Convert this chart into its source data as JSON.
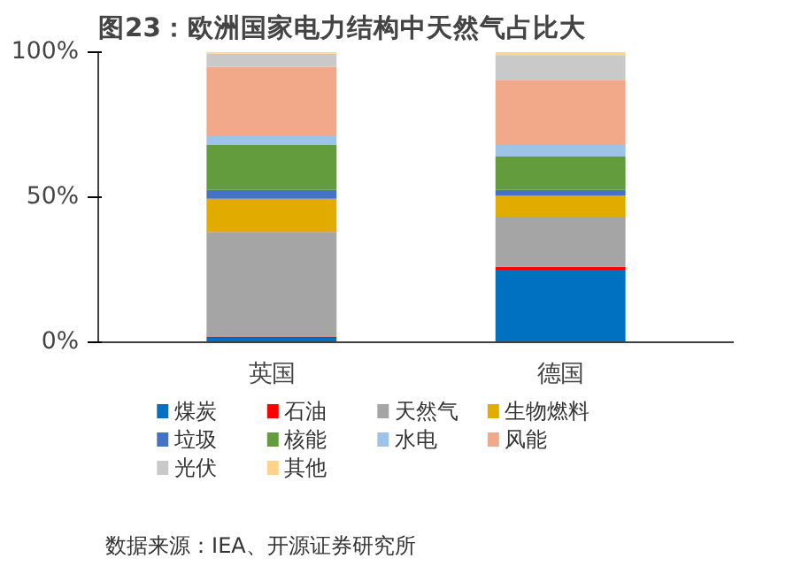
{
  "chart_data": {
    "type": "bar",
    "title": "图23：欧洲国家电力结构中天然气占比大",
    "stacked": true,
    "categories": [
      "英国",
      "德国"
    ],
    "series": [
      {
        "name": "煤炭",
        "color": "#0070c0",
        "values": [
          1.5,
          25
        ]
      },
      {
        "name": "石油",
        "color": "#ff0000",
        "values": [
          0.5,
          1
        ]
      },
      {
        "name": "天然气",
        "color": "#a5a5a5",
        "values": [
          36,
          17
        ]
      },
      {
        "name": "生物燃料",
        "color": "#e1ab00",
        "values": [
          11.5,
          7.5
        ]
      },
      {
        "name": "垃圾",
        "color": "#4472c4",
        "values": [
          3,
          2
        ]
      },
      {
        "name": "核能",
        "color": "#629c3c",
        "values": [
          15.5,
          11.5
        ]
      },
      {
        "name": "水电",
        "color": "#9dc3e6",
        "values": [
          3,
          4
        ]
      },
      {
        "name": "风能",
        "color": "#f2a98a",
        "values": [
          24,
          22.5
        ]
      },
      {
        "name": "光伏",
        "color": "#c9c9c9",
        "values": [
          4.5,
          8.5
        ]
      },
      {
        "name": "其他",
        "color": "#ffd38a",
        "values": [
          0.5,
          1
        ]
      }
    ],
    "ylim": [
      0,
      100
    ],
    "yticks": [
      {
        "value": 0,
        "label": "0%"
      },
      {
        "value": 50,
        "label": "50%"
      },
      {
        "value": 100,
        "label": "100%"
      }
    ],
    "legend": "bottom",
    "grid": false,
    "annotations": [
      "数据来源：IEA、开源证券研究所"
    ]
  }
}
